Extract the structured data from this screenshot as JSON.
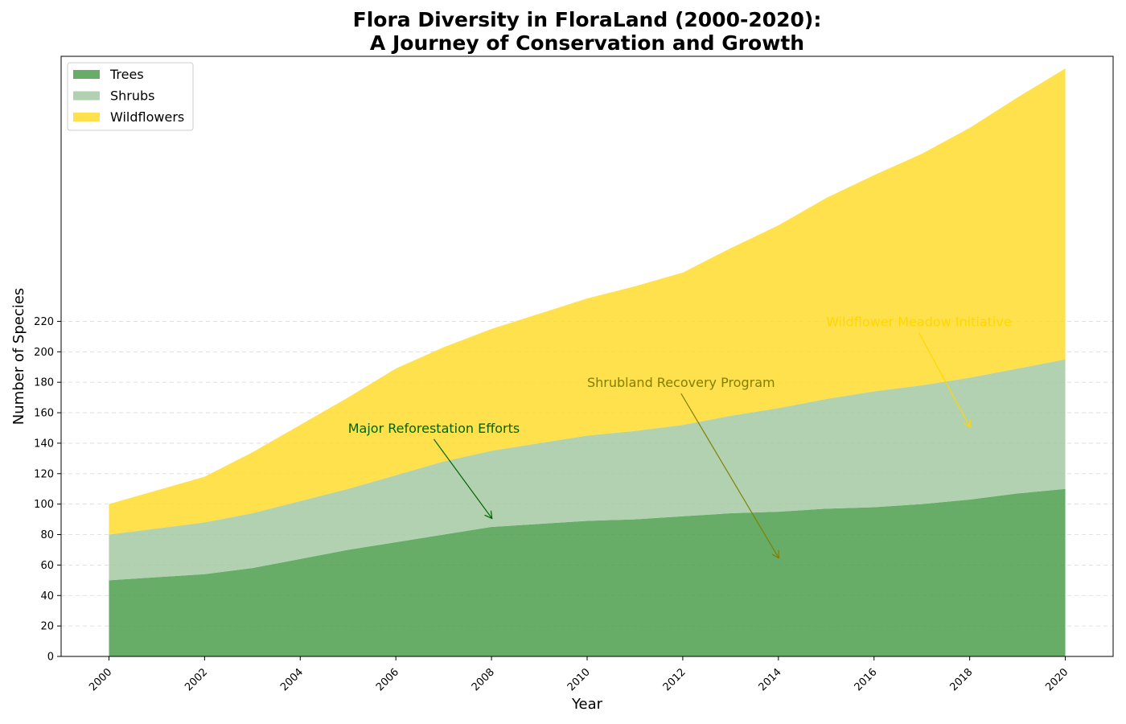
{
  "chart_data": {
    "type": "area",
    "stacked": true,
    "title": [
      "Flora Diversity in FloraLand (2000-2020):",
      "A Journey of Conservation and Growth"
    ],
    "xlabel": "Year",
    "ylabel": "Number of Species",
    "x": [
      2000,
      2001,
      2002,
      2003,
      2004,
      2005,
      2006,
      2007,
      2008,
      2009,
      2010,
      2011,
      2012,
      2013,
      2014,
      2015,
      2016,
      2017,
      2018,
      2019,
      2020
    ],
    "xlim": [
      1999,
      2021
    ],
    "ylim": [
      0,
      394
    ],
    "x_ticks": [
      2000,
      2002,
      2004,
      2006,
      2008,
      2010,
      2012,
      2014,
      2016,
      2018,
      2020
    ],
    "x_tick_labels": [
      "2000",
      "2002",
      "2004",
      "2006",
      "2008",
      "2010",
      "2012",
      "2014",
      "2016",
      "2018",
      "2020"
    ],
    "y_ticks": [
      0,
      20,
      40,
      60,
      80,
      100,
      120,
      140,
      160,
      180,
      200,
      220
    ],
    "y_tick_labels": [
      "0",
      "20",
      "40",
      "60",
      "80",
      "100",
      "120",
      "140",
      "160",
      "180",
      "200",
      "220"
    ],
    "grid": "y-dashed",
    "legend_position": "upper-left",
    "series": [
      {
        "name": "Trees",
        "color": "#4c9f4c",
        "opacity": 0.85,
        "values": [
          50,
          52,
          54,
          58,
          64,
          70,
          75,
          80,
          85,
          87,
          89,
          90,
          92,
          94,
          95,
          97,
          98,
          100,
          103,
          107,
          110
        ]
      },
      {
        "name": "Shrubs",
        "color": "#a3c9a3",
        "opacity": 0.85,
        "values": [
          30,
          32,
          34,
          36,
          38,
          40,
          44,
          48,
          50,
          53,
          56,
          58,
          60,
          64,
          68,
          72,
          76,
          78,
          80,
          82,
          85
        ]
      },
      {
        "name": "Wildflowers",
        "color": "#ffdc2e",
        "opacity": 0.85,
        "values": [
          20,
          25,
          30,
          40,
          50,
          60,
          70,
          75,
          80,
          85,
          90,
          95,
          100,
          110,
          120,
          132,
          142,
          152,
          164,
          178,
          191
        ]
      }
    ],
    "annotations": [
      {
        "text": "Major Reforestation Efforts",
        "color": "#006400",
        "text_x": 2005,
        "text_y": 150,
        "arrow_x": 2008,
        "arrow_y": 91
      },
      {
        "text": "Shrubland Recovery Program",
        "color": "#808000",
        "text_x": 2010,
        "text_y": 180,
        "arrow_x": 2014,
        "arrow_y": 65
      },
      {
        "text": "Wildflower Meadow Initiative",
        "color": "#ffd700",
        "text_x": 2015,
        "text_y": 220,
        "arrow_x": 2018,
        "arrow_y": 151
      }
    ]
  }
}
